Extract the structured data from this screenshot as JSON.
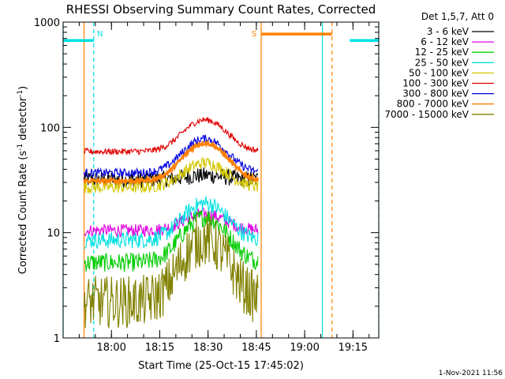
{
  "chart_data": {
    "type": "line",
    "title": "RHESSI Observing Summary Count Rates, Corrected",
    "xlabel": "Start Time (25-Oct-15 17:45:02)",
    "ylabel": "Corrected Count Rate (s",
    "ylabel_sup1": "-1",
    "ylabel_mid": " detector",
    "ylabel_sup2": "-1",
    "ylabel_end": ")",
    "yscale": "log",
    "ylim": [
      1,
      1000
    ],
    "xlim_minutes_after_start": [
      0,
      98
    ],
    "x_ticks": [
      {
        "label": "18:00",
        "t": 15
      },
      {
        "label": "18:15",
        "t": 30
      },
      {
        "label": "18:30",
        "t": 45
      },
      {
        "label": "18:45",
        "t": 60
      },
      {
        "label": "19:00",
        "t": 75
      },
      {
        "label": "19:15",
        "t": 90
      }
    ],
    "y_ticks": [
      {
        "label": "1",
        "v": 1
      },
      {
        "label": "10",
        "v": 10
      },
      {
        "label": "100",
        "v": 100
      },
      {
        "label": "1000",
        "v": 1000
      }
    ],
    "legend_header": "Det 1,5,7, Att 0",
    "legend_placement": "right",
    "series": [
      {
        "name": "3 - 6 keV",
        "color": "#000000",
        "base": 32,
        "peak": 35,
        "noise": 0.08
      },
      {
        "name": "6 - 12 keV",
        "color": "#e000e0",
        "base": 10.5,
        "peak": 15,
        "noise": 0.06
      },
      {
        "name": "12 - 25 keV",
        "color": "#00cc00",
        "base": 5.2,
        "peak": 14,
        "noise": 0.09
      },
      {
        "name": "25 - 50 keV",
        "color": "#00e0e0",
        "base": 8.5,
        "peak": 19,
        "noise": 0.08
      },
      {
        "name": "50 - 100 keV",
        "color": "#d4c800",
        "base": 27,
        "peak": 46,
        "noise": 0.06
      },
      {
        "name": "100 - 300 keV",
        "color": "#e00000",
        "base": 59,
        "peak": 118,
        "noise": 0.03
      },
      {
        "name": "300 - 800 keV",
        "color": "#0000e0",
        "base": 37,
        "peak": 78,
        "noise": 0.04
      },
      {
        "name": "800 - 7000 keV",
        "color": "#ff8000",
        "base": 31,
        "peak": 71,
        "noise": 0.02
      },
      {
        "name": "7000 - 15000 keV",
        "color": "#808000",
        "base": 2.2,
        "peak": 8.5,
        "noise": 0.25
      }
    ],
    "data_window_minutes": [
      6.5,
      60.5
    ],
    "flare_peak_minute": 44,
    "flags": [
      {
        "label": "N",
        "color": "#00e0e0",
        "segments": [
          [
            0,
            9.5
          ],
          [
            89,
            98
          ]
        ],
        "level": 670,
        "boundary_lines": [
          {
            "t": 0,
            "style": "solid"
          },
          {
            "t": 9.5,
            "style": "dashed"
          },
          {
            "t": 80.5,
            "style": "solid"
          },
          {
            "t": 98,
            "style": "dashed"
          }
        ]
      },
      {
        "label": "S",
        "color": "#ff8000",
        "segments": [
          [
            61.5,
            83.5
          ]
        ],
        "level": 770,
        "boundary_lines": [
          {
            "t": 6.5,
            "style": "solid"
          },
          {
            "t": 61.5,
            "style": "solid"
          },
          {
            "t": 83.5,
            "style": "dashed"
          }
        ]
      }
    ]
  },
  "footer_date": "1-Nov-2021 11:56"
}
